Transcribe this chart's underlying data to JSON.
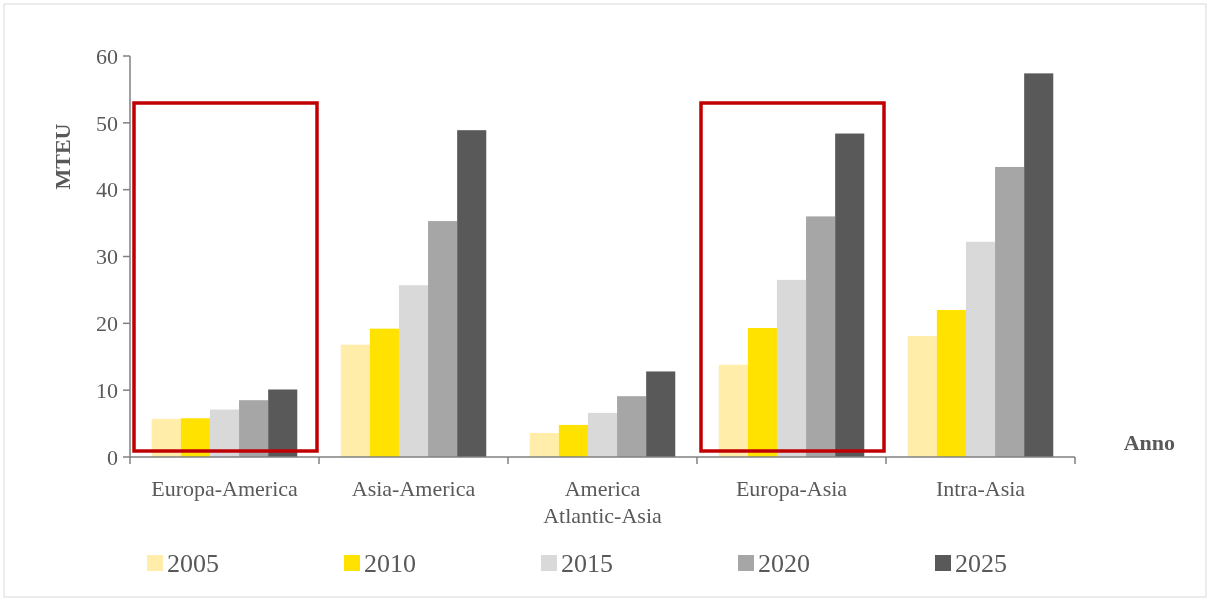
{
  "chart_data": {
    "type": "bar",
    "xlabel": "Anno",
    "ylabel": "MTEU",
    "categories": [
      "Europa-America",
      "Asia-America",
      "America Atlantic-Asia",
      "Europa-Asia",
      "Intra-Asia"
    ],
    "series": [
      {
        "name": "2005",
        "color": "#ffeda9",
        "values": [
          5.7,
          16.8,
          3.6,
          13.8,
          18.1
        ]
      },
      {
        "name": "2010",
        "color": "#ffe200",
        "values": [
          5.8,
          19.2,
          4.8,
          19.3,
          22.0
        ]
      },
      {
        "name": "2015",
        "color": "#d9d9d9",
        "values": [
          7.1,
          25.7,
          6.6,
          26.5,
          32.2
        ]
      },
      {
        "name": "2020",
        "color": "#a6a6a6",
        "values": [
          8.5,
          35.3,
          9.1,
          36.0,
          43.4
        ]
      },
      {
        "name": "2025",
        "color": "#595959",
        "values": [
          10.1,
          48.9,
          12.8,
          48.4,
          57.4
        ]
      }
    ],
    "ylim": [
      0,
      60
    ],
    "yticks": [
      0,
      10,
      20,
      30,
      40,
      50,
      60
    ],
    "legend": "bottom"
  }
}
